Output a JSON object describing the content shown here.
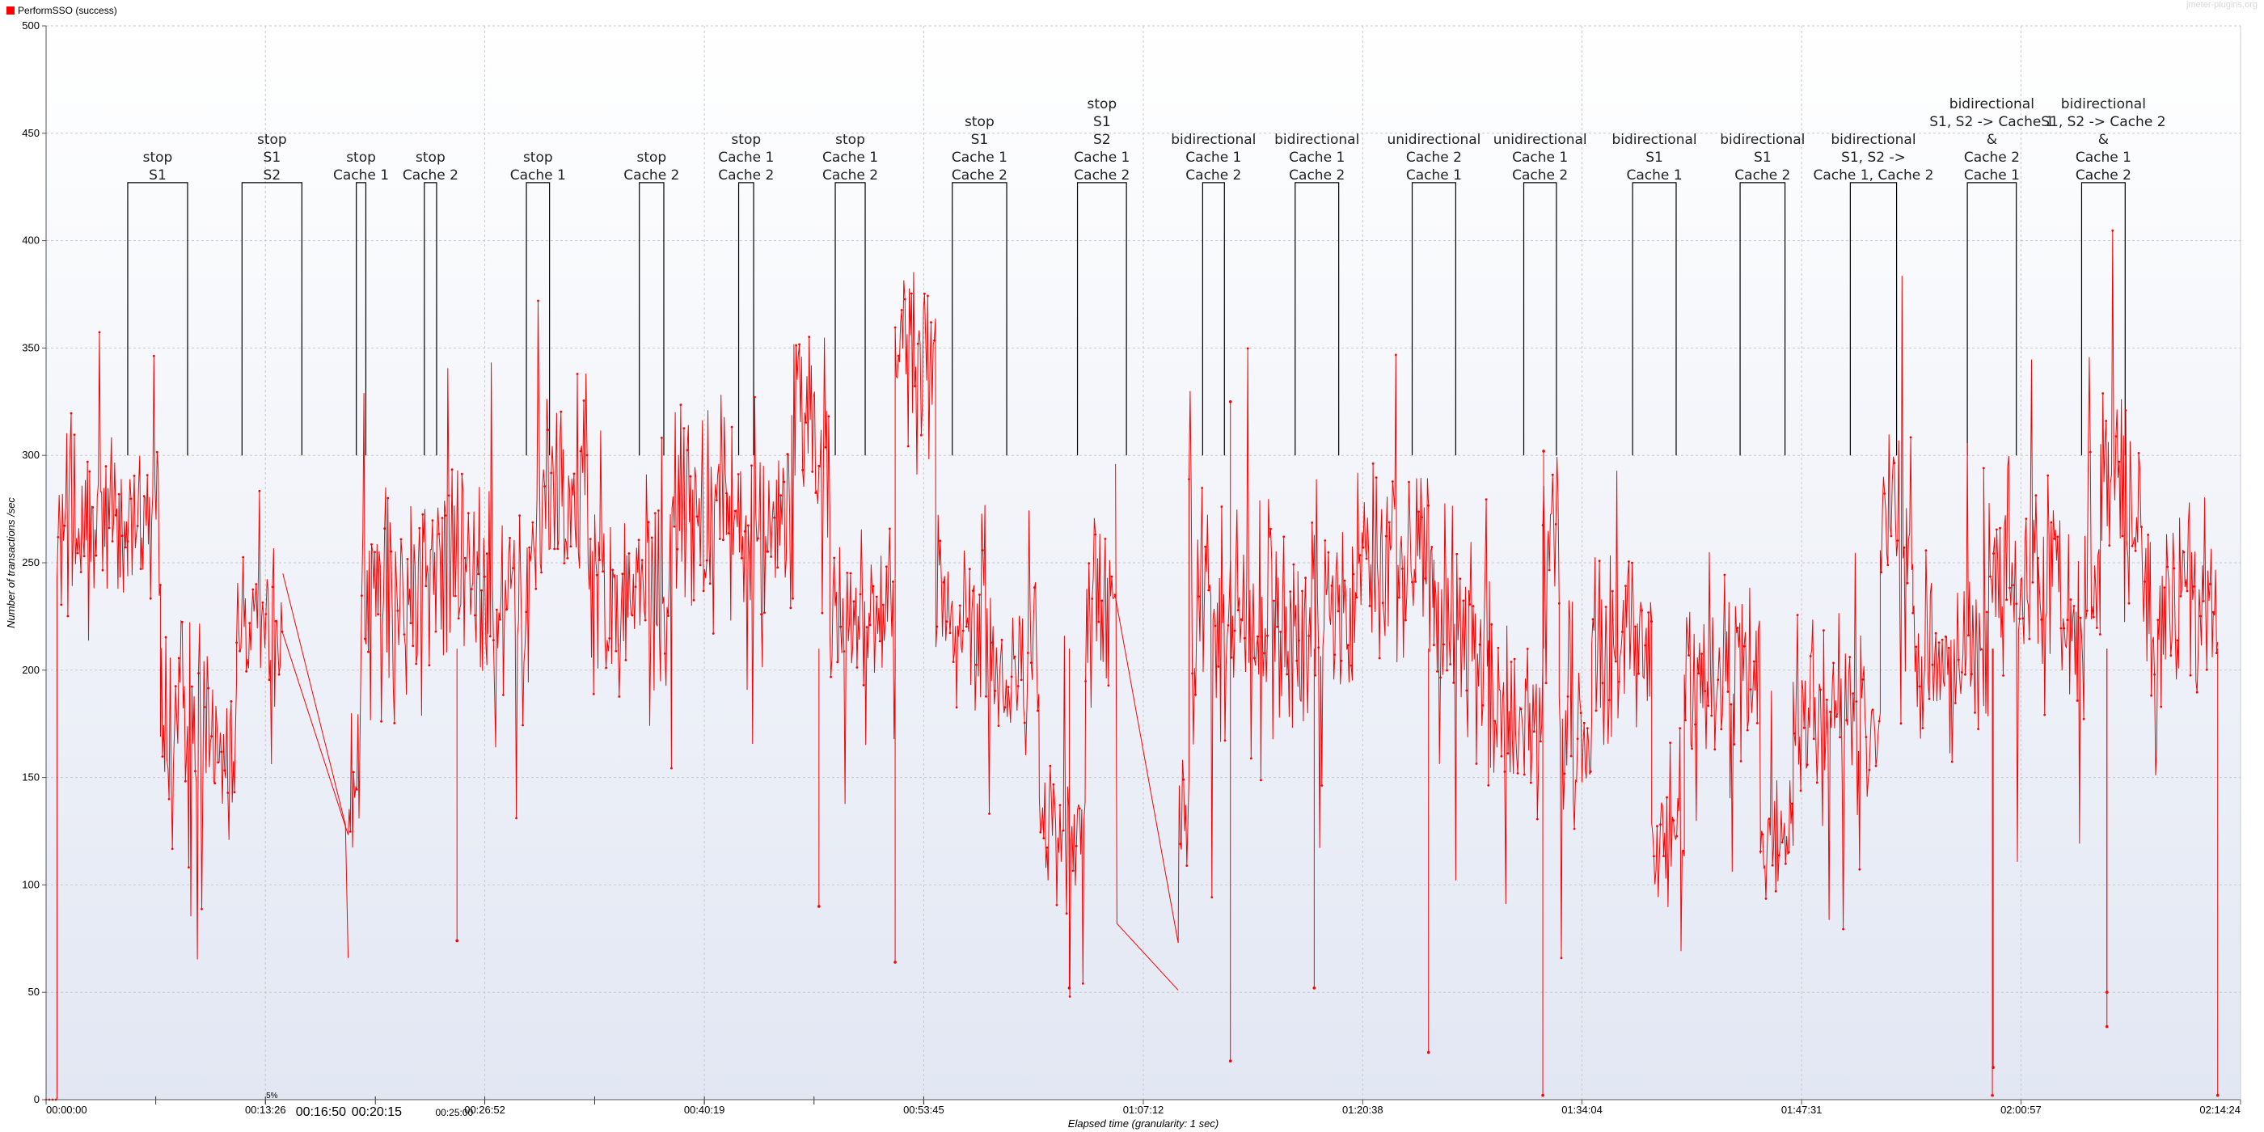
{
  "legend": {
    "label": "PerformSSO (success)",
    "color": "#ff0000"
  },
  "watermark": "jmeter-plugins.org",
  "chart_data": {
    "type": "line",
    "title": "",
    "xlabel": "Elapsed time (granularity: 1 sec)",
    "ylabel": "Number of transactions /sec",
    "xlim": [
      0,
      8064
    ],
    "ylim": [
      0,
      500
    ],
    "yticks": [
      0,
      50,
      100,
      150,
      200,
      250,
      300,
      350,
      400,
      450,
      500
    ],
    "xticks": [
      {
        "t": 0,
        "label": "00:00:00"
      },
      {
        "t": 806,
        "label": "00:13:26"
      },
      {
        "t": 1612,
        "label": "00:26:52"
      },
      {
        "t": 2419,
        "label": "00:40:19"
      },
      {
        "t": 3225,
        "label": "00:53:45"
      },
      {
        "t": 4032,
        "label": "01:07:12"
      },
      {
        "t": 4838,
        "label": "01:20:38"
      },
      {
        "t": 5644,
        "label": "01:34:04"
      },
      {
        "t": 6451,
        "label": "01:47:31"
      },
      {
        "t": 7257,
        "label": "02:00:57"
      },
      {
        "t": 8064,
        "label": "02:14:24"
      }
    ],
    "extra_labels": [
      {
        "t": 1010,
        "label": "00:16:50"
      },
      {
        "t": 1215,
        "label": "00:20:15"
      },
      {
        "t": 1500,
        "label": "00:25:00"
      },
      {
        "t": 830,
        "label": "5%"
      }
    ],
    "grid": true,
    "legend_position": "top-left",
    "series": [
      {
        "name": "PerformSSO (success)",
        "color": "#ff0000",
        "segments": [
          {
            "t0": 0,
            "t1": 40,
            "v": 0,
            "a": 0
          },
          {
            "t0": 40,
            "t1": 160,
            "v": 262,
            "a": 38
          },
          {
            "t0": 160,
            "t1": 300,
            "v": 272,
            "a": 32
          },
          {
            "t0": 300,
            "t1": 420,
            "v": 265,
            "a": 32
          },
          {
            "t0": 420,
            "t1": 700,
            "v": 165,
            "a": 38
          },
          {
            "t0": 700,
            "t1": 870,
            "v": 218,
            "a": 28
          },
          {
            "t0": 1110,
            "t1": 1150,
            "v": 135,
            "a": 15
          },
          {
            "t0": 1160,
            "t1": 1340,
            "v": 235,
            "a": 38
          },
          {
            "t0": 1340,
            "t1": 1620,
            "v": 240,
            "a": 38
          },
          {
            "t0": 1620,
            "t1": 1800,
            "v": 240,
            "a": 38
          },
          {
            "t0": 1800,
            "t1": 2030,
            "v": 275,
            "a": 42
          },
          {
            "t0": 2030,
            "t1": 2300,
            "v": 232,
            "a": 32
          },
          {
            "t0": 2300,
            "t1": 2500,
            "v": 275,
            "a": 38
          },
          {
            "t0": 2500,
            "t1": 2740,
            "v": 268,
            "a": 38
          },
          {
            "t0": 2740,
            "t1": 2880,
            "v": 320,
            "a": 42
          },
          {
            "t0": 2880,
            "t1": 3120,
            "v": 230,
            "a": 32
          },
          {
            "t0": 3120,
            "t1": 3270,
            "v": 348,
            "a": 36
          },
          {
            "t0": 3270,
            "t1": 3480,
            "v": 225,
            "a": 30
          },
          {
            "t0": 3480,
            "t1": 3650,
            "v": 198,
            "a": 28
          },
          {
            "t0": 3650,
            "t1": 3820,
            "v": 128,
            "a": 28
          },
          {
            "t0": 3820,
            "t1": 3930,
            "v": 235,
            "a": 38
          },
          {
            "t0": 4160,
            "t1": 4200,
            "v": 130,
            "a": 20
          },
          {
            "t0": 4200,
            "t1": 4600,
            "v": 225,
            "a": 42
          },
          {
            "t0": 4600,
            "t1": 4800,
            "v": 220,
            "a": 38
          },
          {
            "t0": 4800,
            "t1": 5100,
            "v": 250,
            "a": 38
          },
          {
            "t0": 5100,
            "t1": 5300,
            "v": 215,
            "a": 38
          },
          {
            "t0": 5300,
            "t1": 5500,
            "v": 175,
            "a": 32
          },
          {
            "t0": 5500,
            "t1": 5560,
            "v": 270,
            "a": 25
          },
          {
            "t0": 5560,
            "t1": 5680,
            "v": 160,
            "a": 30
          },
          {
            "t0": 5680,
            "t1": 5900,
            "v": 215,
            "a": 35
          },
          {
            "t0": 5900,
            "t1": 6020,
            "v": 122,
            "a": 18
          },
          {
            "t0": 6020,
            "t1": 6300,
            "v": 200,
            "a": 32
          },
          {
            "t0": 6300,
            "t1": 6420,
            "v": 125,
            "a": 22
          },
          {
            "t0": 6420,
            "t1": 6740,
            "v": 180,
            "a": 32
          },
          {
            "t0": 6740,
            "t1": 6860,
            "v": 270,
            "a": 38
          },
          {
            "t0": 6860,
            "t1": 7120,
            "v": 205,
            "a": 32
          },
          {
            "t0": 7120,
            "t1": 7320,
            "v": 240,
            "a": 42
          },
          {
            "t0": 7320,
            "t1": 7550,
            "v": 235,
            "a": 38
          },
          {
            "t0": 7550,
            "t1": 7700,
            "v": 280,
            "a": 40
          },
          {
            "t0": 7700,
            "t1": 7980,
            "v": 230,
            "a": 32
          }
        ],
        "connectors": [
          {
            "t0": 870,
            "v0": 245,
            "t1": 1100,
            "v1": 128
          },
          {
            "t0": 1100,
            "v0": 128,
            "t1": 1110,
            "v1": 66
          },
          {
            "t0": 3930,
            "v0": 296,
            "t1": 3935,
            "v1": 82
          },
          {
            "t0": 3935,
            "v0": 82,
            "t1": 4160,
            "v1": 51
          }
        ],
        "spikes": [
          {
            "t": 4352,
            "v": 18
          },
          {
            "t": 4352,
            "v": 325
          },
          {
            "t": 7152,
            "v": 2
          },
          {
            "t": 7155,
            "v": 15
          },
          {
            "t": 7573,
            "v": 34
          },
          {
            "t": 7573,
            "v": 50
          },
          {
            "t": 5500,
            "v": 2
          },
          {
            "t": 5503,
            "v": 302
          },
          {
            "t": 3120,
            "v": 64
          },
          {
            "t": 2840,
            "v": 90
          },
          {
            "t": 5080,
            "v": 22
          },
          {
            "t": 4660,
            "v": 52
          },
          {
            "t": 3760,
            "v": 52
          },
          {
            "t": 1510,
            "v": 74
          },
          {
            "t": 7980,
            "v": 2
          }
        ]
      }
    ],
    "annotations": [
      {
        "t0": 300,
        "t1": 520,
        "lines": [
          "stop",
          "S1"
        ]
      },
      {
        "t0": 720,
        "t1": 940,
        "lines": [
          "stop",
          "S1",
          "S2"
        ]
      },
      {
        "t0": 1140,
        "t1": 1175,
        "lines": [
          "stop",
          "Cache 1"
        ]
      },
      {
        "t0": 1390,
        "t1": 1435,
        "lines": [
          "stop",
          "Cache 2"
        ]
      },
      {
        "t0": 1765,
        "t1": 1850,
        "lines": [
          "stop",
          "Cache 1"
        ]
      },
      {
        "t0": 2180,
        "t1": 2270,
        "lines": [
          "stop",
          "Cache 2"
        ]
      },
      {
        "t0": 2545,
        "t1": 2600,
        "lines": [
          "stop",
          "Cache 1",
          "Cache 2"
        ]
      },
      {
        "t0": 2900,
        "t1": 3010,
        "lines": [
          "stop",
          "Cache 1",
          "Cache 2"
        ]
      },
      {
        "t0": 3330,
        "t1": 3530,
        "lines": [
          "stop",
          "S1",
          "Cache 1",
          "Cache 2"
        ]
      },
      {
        "t0": 3790,
        "t1": 3970,
        "lines": [
          "stop",
          "S1",
          "S2",
          "Cache 1",
          "Cache 2"
        ]
      },
      {
        "t0": 4250,
        "t1": 4330,
        "lines": [
          "bidirectional",
          "Cache 1",
          "Cache 2"
        ]
      },
      {
        "t0": 4590,
        "t1": 4750,
        "lines": [
          "bidirectional",
          "Cache 1",
          "Cache 2"
        ]
      },
      {
        "t0": 5020,
        "t1": 5180,
        "lines": [
          "unidirectional",
          "Cache 2",
          "Cache 1"
        ]
      },
      {
        "t0": 5430,
        "t1": 5550,
        "lines": [
          "unidirectional",
          "Cache 1",
          "Cache 2"
        ]
      },
      {
        "t0": 5830,
        "t1": 5990,
        "lines": [
          "bidirectional",
          "S1",
          "Cache 1"
        ]
      },
      {
        "t0": 6225,
        "t1": 6390,
        "lines": [
          "bidirectional",
          "S1",
          "Cache 2"
        ]
      },
      {
        "t0": 6630,
        "t1": 6800,
        "lines": [
          "bidirectional",
          "S1, S2 ->",
          "Cache 1, Cache 2"
        ]
      },
      {
        "t0": 7060,
        "t1": 7240,
        "lines": [
          "bidirectional",
          "S1, S2 -> Cache 1",
          "&",
          "Cache 2",
          "Cache 1"
        ]
      },
      {
        "t0": 7480,
        "t1": 7640,
        "lines": [
          "bidirectional",
          "S1, S2 -> Cache 2",
          "&",
          "Cache 1",
          "Cache 2"
        ]
      }
    ]
  }
}
